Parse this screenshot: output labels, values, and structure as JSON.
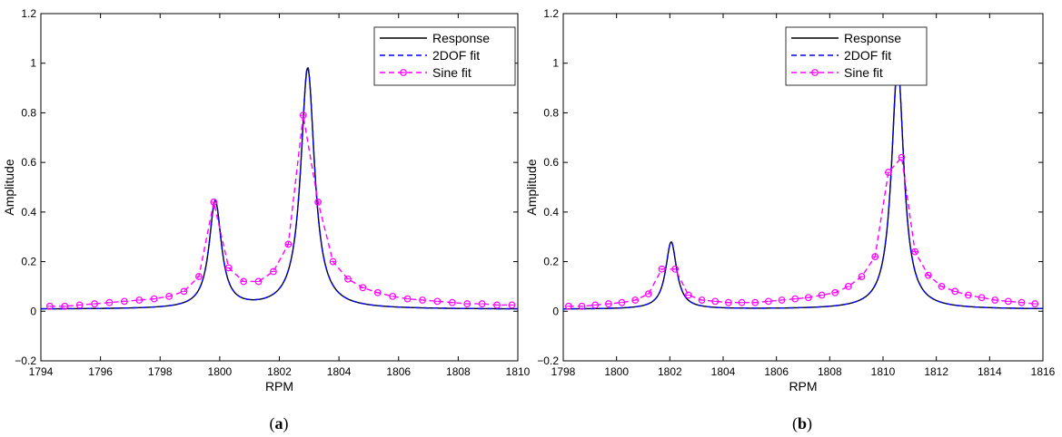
{
  "chart_data": [
    {
      "type": "line",
      "caption": {
        "open": "(",
        "letter": "a",
        "close": ")"
      },
      "xlabel": "RPM",
      "ylabel": "Amplitude",
      "xlim": [
        1794,
        1810
      ],
      "ylim": [
        -0.2,
        1.2
      ],
      "xticks": [
        1794,
        1796,
        1798,
        1800,
        1802,
        1804,
        1806,
        1808,
        1810
      ],
      "yticks": [
        -0.2,
        0,
        0.2,
        0.4,
        0.6,
        0.8,
        1,
        1.2
      ],
      "grid": false,
      "legend_position": "top-right",
      "peaks": [
        {
          "center": 1799.85,
          "height": 0.43,
          "width": 0.25
        },
        {
          "center": 1802.95,
          "height": 0.97,
          "width": 0.28
        }
      ],
      "series": [
        {
          "name": "Response",
          "color": "#000000",
          "style": "solid"
        },
        {
          "name": "2DOF fit",
          "color": "#0000ff",
          "style": "dashed"
        },
        {
          "name": "Sine fit",
          "color": "#ff00ff",
          "style": "dashed",
          "marker": "circle",
          "x": [
            1794.3,
            1794.8,
            1795.3,
            1795.8,
            1796.3,
            1796.8,
            1797.3,
            1797.8,
            1798.3,
            1798.8,
            1799.3,
            1799.8,
            1800.3,
            1800.8,
            1801.3,
            1801.8,
            1802.3,
            1802.8,
            1803.3,
            1803.8,
            1804.3,
            1804.8,
            1805.3,
            1805.8,
            1806.3,
            1806.8,
            1807.3,
            1807.8,
            1808.3,
            1808.8,
            1809.3,
            1809.8
          ],
          "values": [
            0.02,
            0.02,
            0.025,
            0.03,
            0.035,
            0.04,
            0.045,
            0.05,
            0.06,
            0.08,
            0.14,
            0.44,
            0.175,
            0.12,
            0.12,
            0.16,
            0.27,
            0.79,
            0.44,
            0.2,
            0.13,
            0.095,
            0.075,
            0.06,
            0.05,
            0.045,
            0.04,
            0.035,
            0.03,
            0.03,
            0.025,
            0.025
          ]
        }
      ]
    },
    {
      "type": "line",
      "caption": {
        "open": "(",
        "letter": "b",
        "close": ")"
      },
      "xlabel": "RPM",
      "ylabel": "Amplitude",
      "xlim": [
        1798,
        1816
      ],
      "ylim": [
        -0.2,
        1.2
      ],
      "xticks": [
        1798,
        1800,
        1802,
        1804,
        1806,
        1808,
        1810,
        1812,
        1814,
        1816
      ],
      "yticks": [
        -0.2,
        0,
        0.2,
        0.4,
        0.6,
        0.8,
        1,
        1.2
      ],
      "grid": false,
      "legend_position": "top-left",
      "peaks": [
        {
          "center": 1802.05,
          "height": 0.27,
          "width": 0.25
        },
        {
          "center": 1810.55,
          "height": 0.98,
          "width": 0.28
        }
      ],
      "series": [
        {
          "name": "Response",
          "color": "#000000",
          "style": "solid"
        },
        {
          "name": "2DOF fit",
          "color": "#0000ff",
          "style": "dashed"
        },
        {
          "name": "Sine fit",
          "color": "#ff00ff",
          "style": "dashed",
          "marker": "circle",
          "x": [
            1798.2,
            1798.7,
            1799.2,
            1799.7,
            1800.2,
            1800.7,
            1801.2,
            1801.7,
            1802.2,
            1802.7,
            1803.2,
            1803.7,
            1804.2,
            1804.7,
            1805.2,
            1805.7,
            1806.2,
            1806.7,
            1807.2,
            1807.7,
            1808.2,
            1808.7,
            1809.2,
            1809.7,
            1810.2,
            1810.7,
            1811.2,
            1811.7,
            1812.2,
            1812.7,
            1813.2,
            1813.7,
            1814.2,
            1814.7,
            1815.2,
            1815.7
          ],
          "values": [
            0.02,
            0.02,
            0.025,
            0.03,
            0.035,
            0.045,
            0.07,
            0.17,
            0.17,
            0.065,
            0.045,
            0.04,
            0.035,
            0.035,
            0.035,
            0.04,
            0.045,
            0.05,
            0.055,
            0.065,
            0.075,
            0.1,
            0.14,
            0.22,
            0.56,
            0.62,
            0.24,
            0.145,
            0.1,
            0.08,
            0.065,
            0.055,
            0.045,
            0.04,
            0.035,
            0.03
          ]
        }
      ]
    }
  ]
}
